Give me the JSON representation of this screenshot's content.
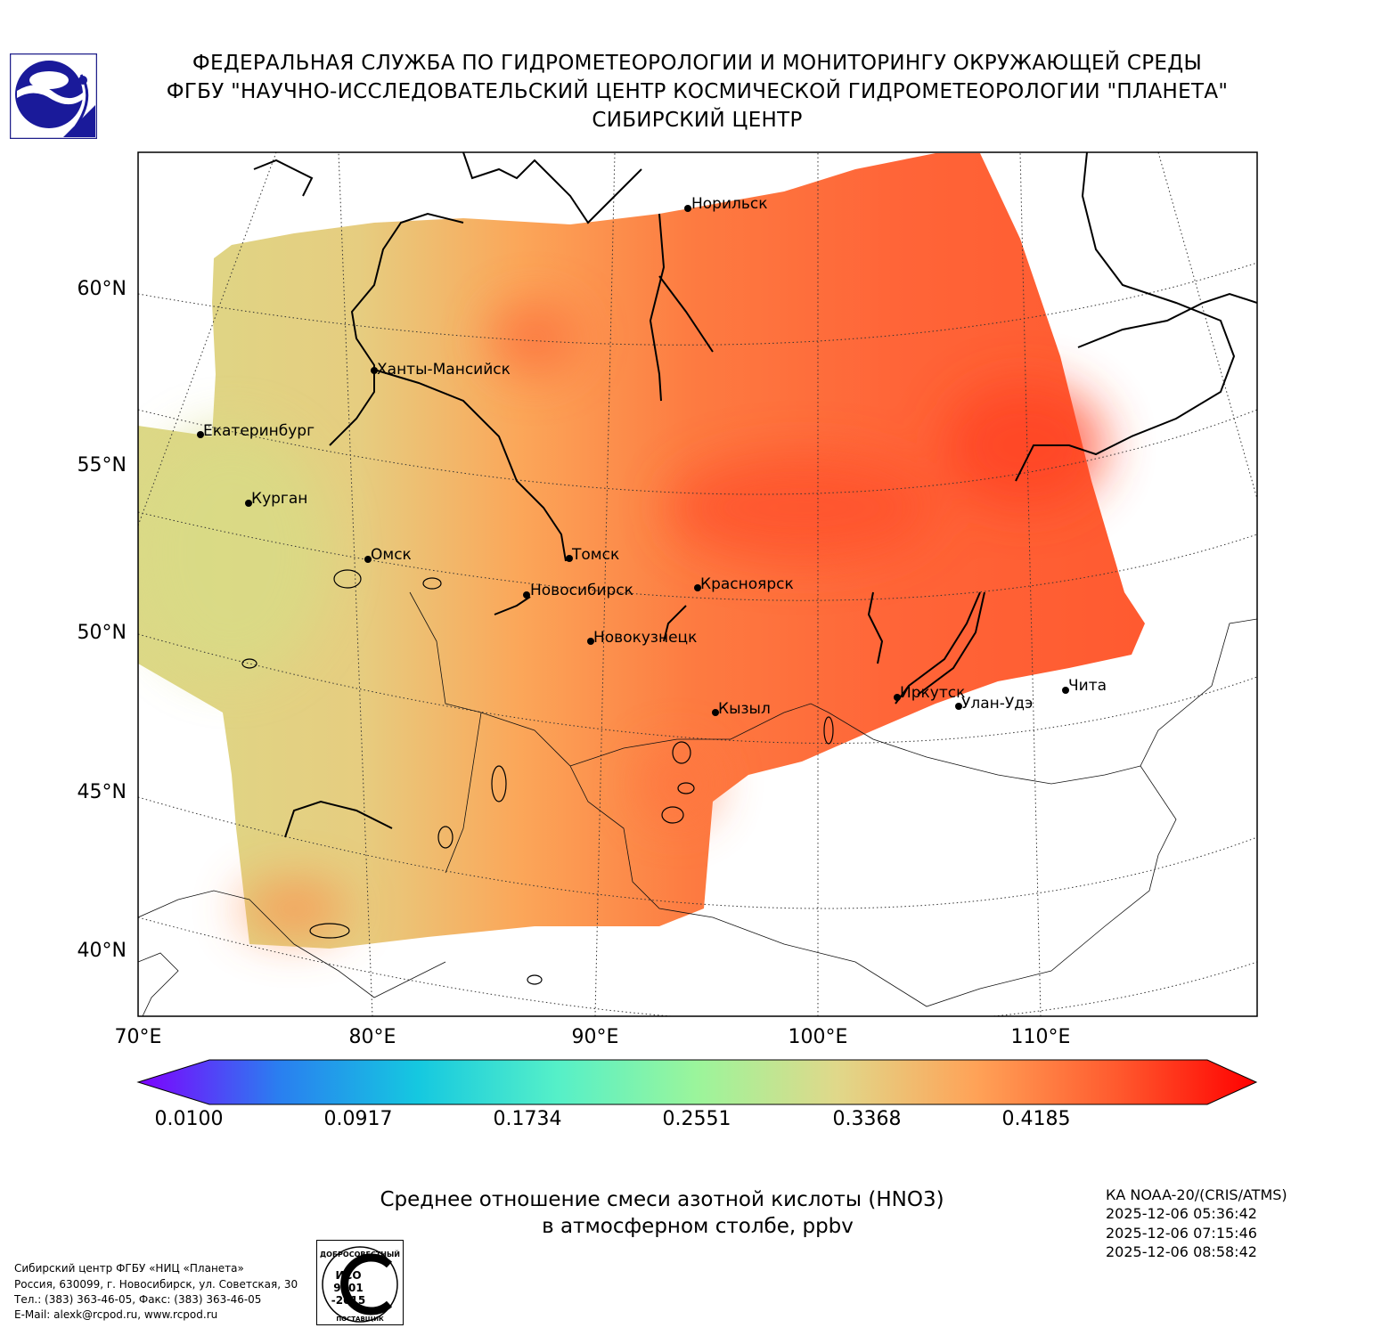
{
  "header": {
    "line1": "ФЕДЕРАЛЬНАЯ СЛУЖБА ПО ГИДРОМЕТЕОРОЛОГИИ И МОНИТОРИНГУ ОКРУЖАЮЩЕЙ СРЕДЫ",
    "line2": "ФГБУ \"НАУЧНО-ИССЛЕДОВАТЕЛЬСКИЙ ЦЕНТР КОСМИЧЕСКОЙ ГИДРОМЕТЕОРОЛОГИИ \"ПЛАНЕТА\"",
    "line3": "СИБИРСКИЙ ЦЕНТР"
  },
  "map": {
    "lat_labels": [
      "60°N",
      "55°N",
      "50°N",
      "45°N",
      "40°N"
    ],
    "lon_labels": [
      "70°E",
      "80°E",
      "90°E",
      "100°E",
      "110°E"
    ],
    "cities": [
      "Норильск",
      "Ханты-Мансийск",
      "Екатеринбург",
      "Курган",
      "Омск",
      "Томск",
      "Новосибирск",
      "Красноярск",
      "Новокузнецк",
      "Иркутск",
      "Улан-Удэ",
      "Чита",
      "Кызыл"
    ]
  },
  "colorbar": {
    "ticks": [
      "0.0100",
      "0.0917",
      "0.1734",
      "0.2551",
      "0.3368",
      "0.4185"
    ],
    "colors": [
      "#7f00ff",
      "#2a7ef0",
      "#15c8e0",
      "#55f0c8",
      "#9bf59b",
      "#e0d88a",
      "#ffa257",
      "#ff5a2e",
      "#ff0000"
    ]
  },
  "title": {
    "line1": "Среднее отношение смеси азотной кислоты (HNO3)",
    "line2": "в атмосферном столбе, ppbv"
  },
  "satellite": {
    "name": "КА NOAA-20/(CRIS/ATMS)",
    "times": [
      "2025-12-06 05:36:42",
      "2025-12-06 07:15:46",
      "2025-12-06 08:58:42"
    ]
  },
  "contact": {
    "line1": "Сибирский центр ФГБУ «НИЦ «Планета»",
    "line2": "Россия, 630099, г. Новосибирск, ул. Советская, 30",
    "line3": "Тел.: (383) 363-46-05, Факс: (383) 363-46-05",
    "line4": "E-Mail: alexk@rcpod.ru, www.rcpod.ru"
  },
  "iso_stamp": {
    "top": "ДОБРОСОВЕСТНЫЙ",
    "line1": "ИСО",
    "line2": "9001",
    "line3": "-2015",
    "bottom": "ПОСТАВЩИК"
  }
}
